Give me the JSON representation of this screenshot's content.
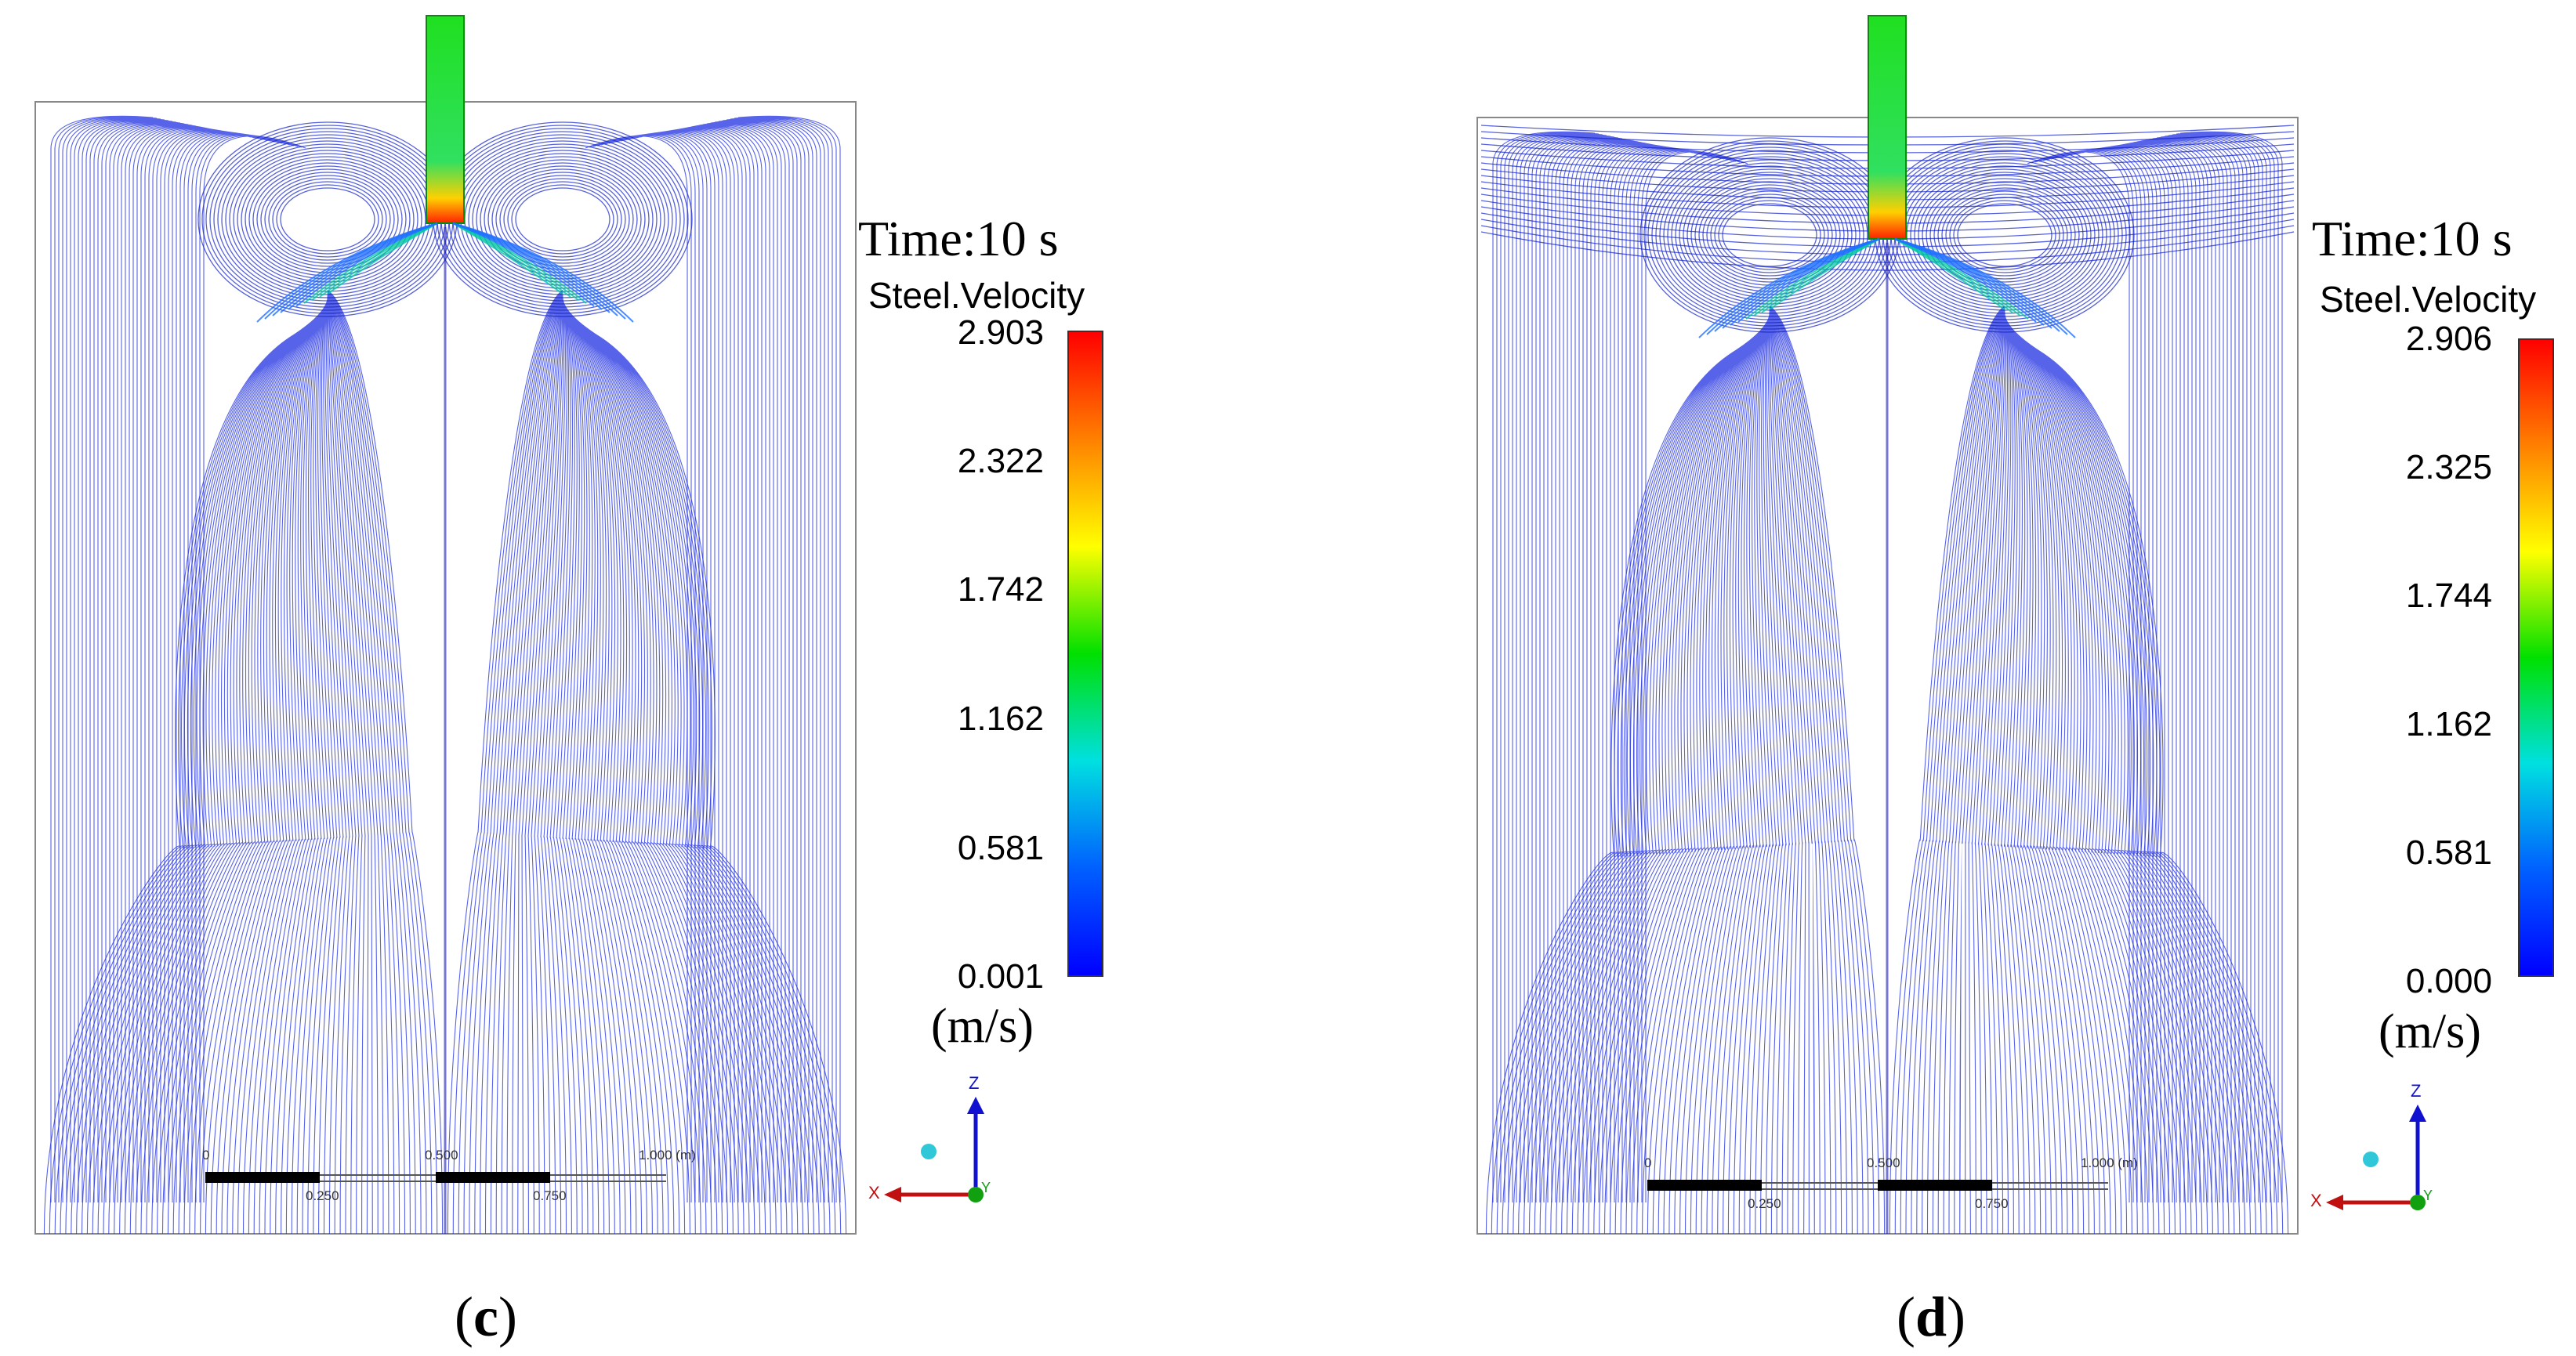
{
  "panels": [
    {
      "id": "c",
      "label": "c",
      "time_label": "Time:10 s",
      "variable": "Steel.Velocity",
      "colorbar_ticks": [
        "2.903",
        "2.322",
        "1.742",
        "1.162",
        "0.581",
        "0.001"
      ],
      "unit": "(m/s)",
      "scale_labels_top": [
        "0",
        "0.500",
        "1.000 (m)"
      ],
      "scale_labels_bottom": [
        "0.250",
        "0.750"
      ],
      "axes": {
        "z": "Z",
        "x": "X",
        "y": "Y"
      }
    },
    {
      "id": "d",
      "label": "d",
      "time_label": "Time:10 s",
      "variable": "Steel.Velocity",
      "colorbar_ticks": [
        "2.906",
        "2.325",
        "1.744",
        "1.162",
        "0.581",
        "0.000"
      ],
      "unit": "(m/s)",
      "scale_labels_top": [
        "0",
        "0.500",
        "1.000 (m)"
      ],
      "scale_labels_bottom": [
        "0.250",
        "0.750"
      ],
      "axes": {
        "z": "Z",
        "x": "X",
        "y": "Y"
      }
    }
  ],
  "colors": {
    "streamline": "#1f2fe0",
    "colormap": [
      "#ff0000",
      "#ff8000",
      "#ffff00",
      "#00e000",
      "#00e0e0",
      "#0060ff",
      "#0000ff"
    ]
  }
}
